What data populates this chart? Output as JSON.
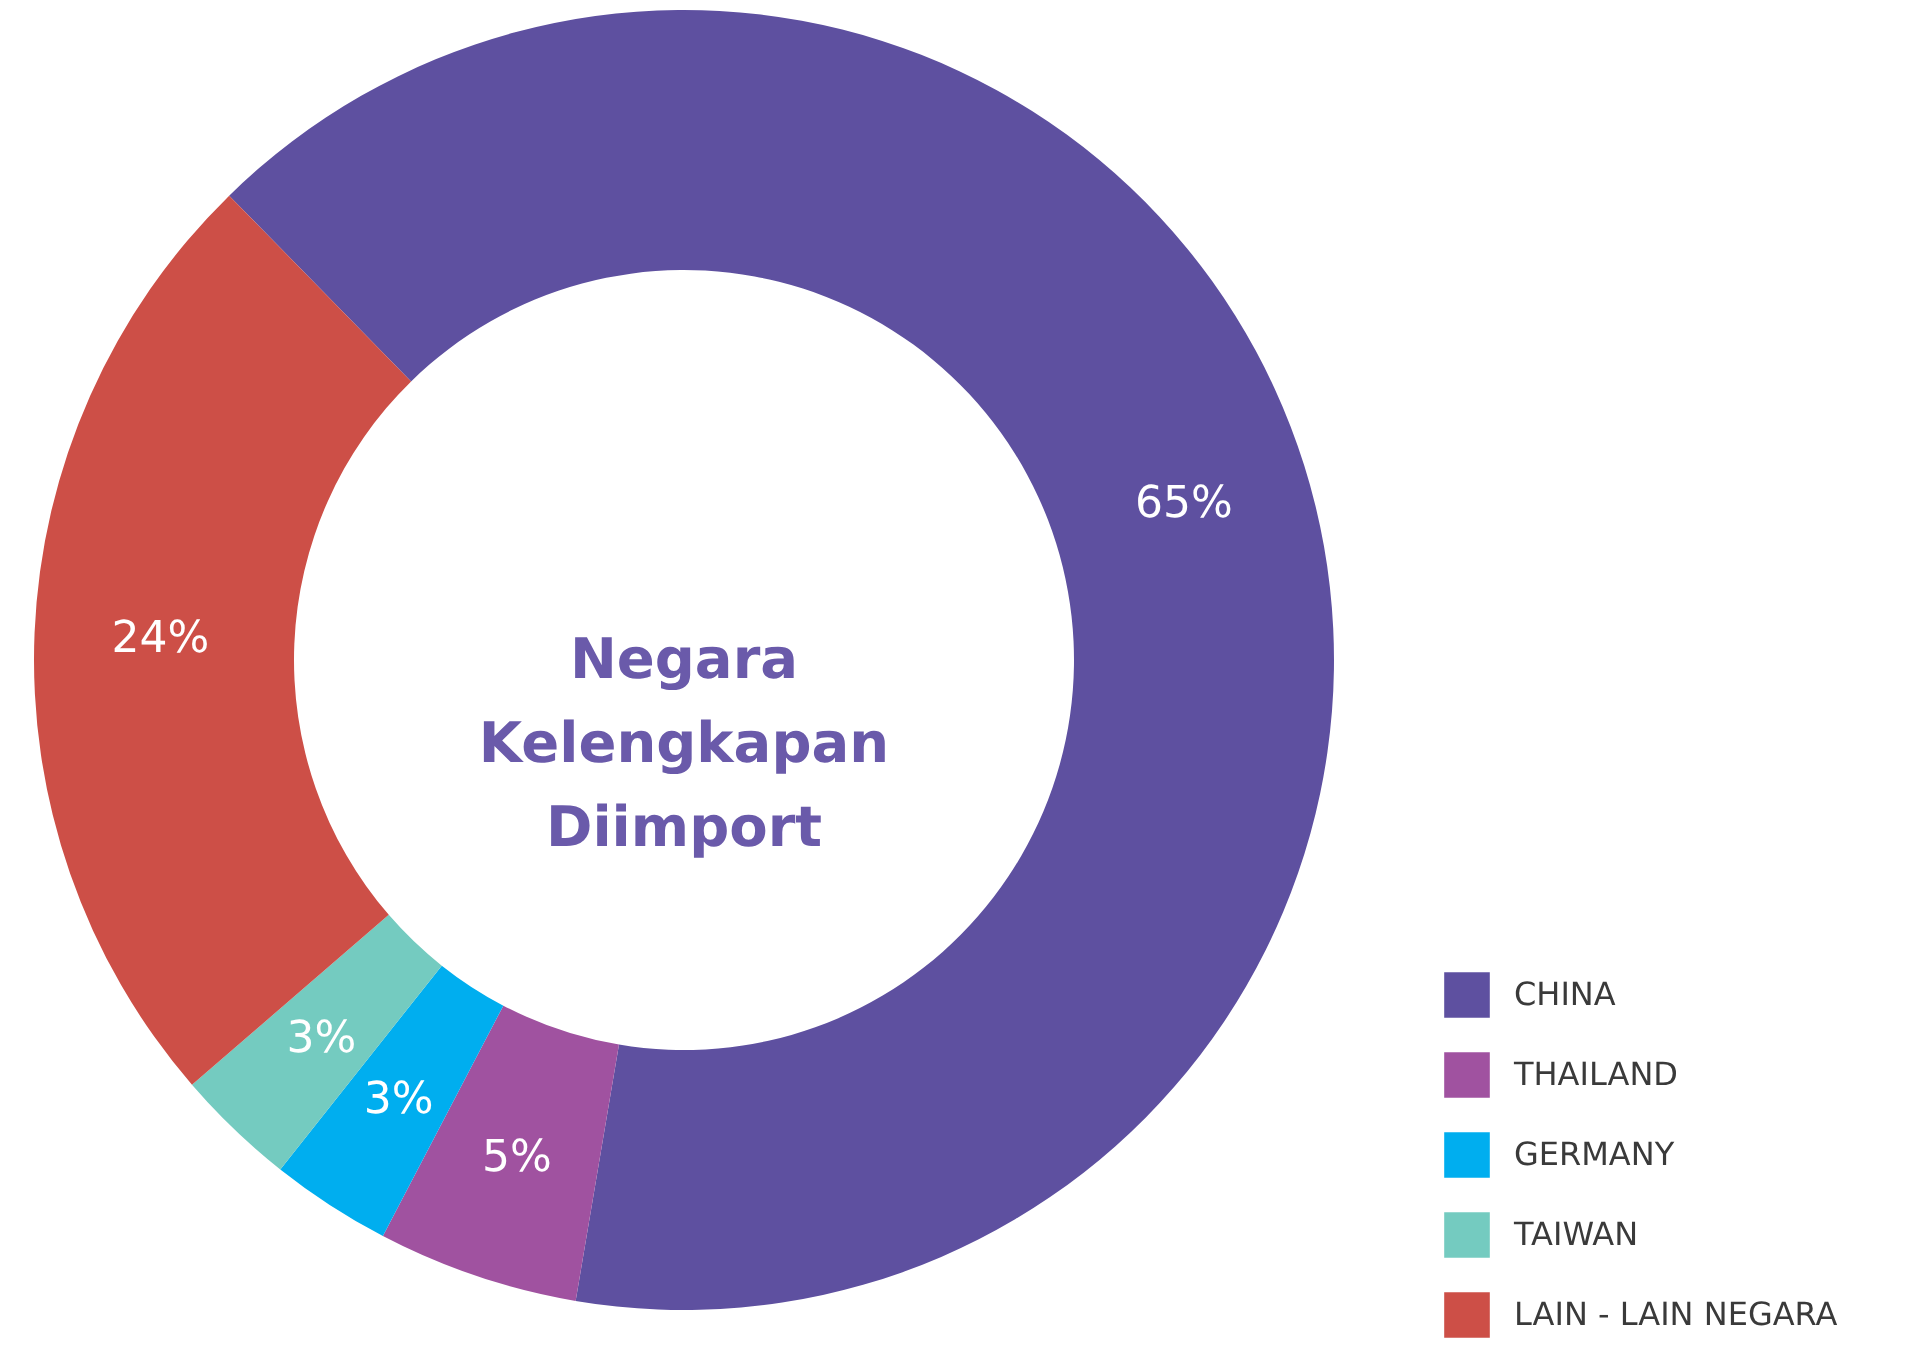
{
  "chart_data": {
    "type": "donut",
    "title": "Negara Kelengkapan Diimport",
    "categories": [
      "CHINA",
      "THAILAND",
      "GERMANY",
      "TAIWAN",
      "LAIN - LAIN NEGARA"
    ],
    "values": [
      65,
      5,
      3,
      3,
      24
    ],
    "value_labels": [
      "65%",
      "5%",
      "3%",
      "3%",
      "24%"
    ],
    "colors": [
      "#5e50a0",
      "#a052a0",
      "#00aeef",
      "#74cbc0",
      "#cd4f47"
    ],
    "legend": "bottom right"
  }
}
